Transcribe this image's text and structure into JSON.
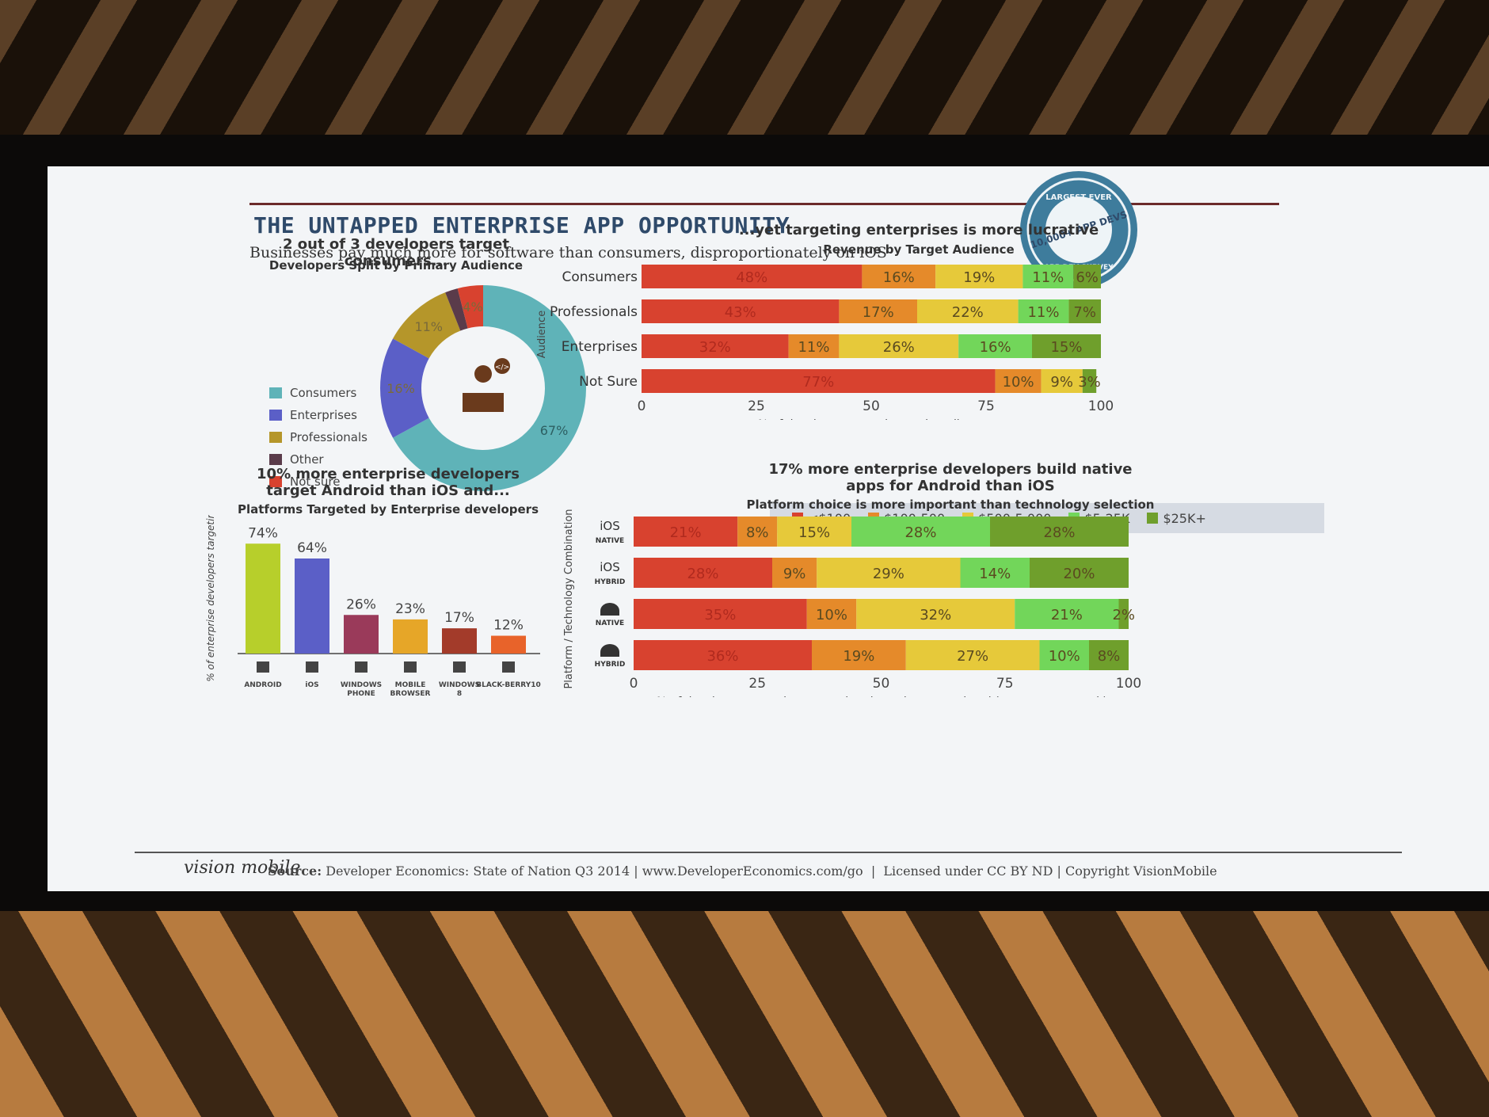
{
  "slide": {
    "title": "THE UNTAPPED ENTERPRISE APP OPPORTUNITY",
    "subtitle": "Businesses pay much more for software than consumers, disproportionately on iOS",
    "seal": {
      "top": "LARGEST EVER",
      "middle": "10,000+ APP DEVS",
      "bottom": "APP DEV SURVEY"
    },
    "footer": {
      "logo": "vision mobile",
      "source_label": "Source:",
      "source_text": "Developer Economics: State of Nation Q3 2014 | www.DeveloperEconomics.com/go",
      "license": "Licensed under CC BY ND | Copyright VisionMobile"
    }
  },
  "colors": {
    "consumers": "#5fb3b8",
    "enterprises": "#5b5fc7",
    "professionals": "#b5962a",
    "other": "#5a3b4a",
    "not_sure": "#d8422f",
    "lt100": "#d8422f",
    "100_500": "#e58a2a",
    "500_5000": "#e6c93a",
    "5_25k": "#72d65a",
    "25k_plus": "#6f9f2c"
  },
  "chart_data": [
    {
      "type": "pie",
      "title": "2 out of 3 developers target consumers...",
      "subtitle": "Developers Split by Primary Audience",
      "legend_position": "left",
      "slices": [
        {
          "name": "Consumers",
          "value": 67,
          "label": "67%"
        },
        {
          "name": "Enterprises",
          "value": 16,
          "label": "16%"
        },
        {
          "name": "Professionals",
          "value": 11,
          "label": "11%"
        },
        {
          "name": "Other",
          "value": 2,
          "label": ""
        },
        {
          "name": "Not sure",
          "value": 4,
          "label": "4%"
        }
      ]
    },
    {
      "type": "bar",
      "orientation": "horizontal",
      "stacked": true,
      "title": "...yet targeting enterprises is more lucrative",
      "subtitle": "Revenue by Target Audience",
      "ylabel": "Audience",
      "xlabel": "% of developers targeting each audience",
      "xlim": [
        0,
        100
      ],
      "xticks": [
        "0",
        "25",
        "50",
        "75",
        "100"
      ],
      "categories": [
        "Consumers",
        "Professionals",
        "Enterprises",
        "Not Sure"
      ],
      "series": [
        {
          "name": "<$100",
          "values": [
            48,
            43,
            32,
            77
          ]
        },
        {
          "name": "$100-500",
          "values": [
            16,
            17,
            11,
            10
          ]
        },
        {
          "name": "$500-5,000",
          "values": [
            19,
            22,
            26,
            9
          ]
        },
        {
          "name": "$5-25K",
          "values": [
            11,
            11,
            16,
            0
          ]
        },
        {
          "name": "$25K+",
          "values": [
            6,
            7,
            15,
            3
          ]
        }
      ]
    },
    {
      "type": "bar",
      "title": "10% more enterprise developers target Android than iOS and...",
      "subtitle": "Platforms Targeted by Enterprise developers",
      "ylabel": "% of enterprise developers targeting",
      "categories": [
        "ANDROID",
        "iOS",
        "WINDOWS PHONE",
        "MOBILE BROWSER",
        "WINDOWS 8",
        "BLACK-BERRY10"
      ],
      "values": [
        74,
        64,
        26,
        23,
        17,
        12
      ],
      "labels": [
        "74%",
        "64%",
        "26%",
        "23%",
        "17%",
        "12%"
      ],
      "bar_colors": [
        "#b7cf2b",
        "#5b5fc7",
        "#9a3a5a",
        "#e6a628",
        "#a33b2a",
        "#e8632a"
      ],
      "ylim": [
        0,
        80
      ]
    },
    {
      "type": "bar",
      "orientation": "horizontal",
      "stacked": true,
      "title": "17% more enterprise developers build native apps for Android than iOS",
      "subtitle": "Platform choice is more important than technology selection",
      "ylabel": "Platform / Technology Combination",
      "xlabel": "% of developers targeting enterprises in each revenue band (per app per month)",
      "xlim": [
        0,
        100
      ],
      "xticks": [
        "0",
        "25",
        "50",
        "75",
        "100"
      ],
      "categories": [
        {
          "platform": "iOS",
          "tech": "NATIVE"
        },
        {
          "platform": "iOS",
          "tech": "HYBRID"
        },
        {
          "platform": "",
          "tech": "NATIVE"
        },
        {
          "platform": "",
          "tech": "HYBRID"
        }
      ],
      "series": [
        {
          "name": "<$100",
          "values": [
            21,
            28,
            35,
            36
          ]
        },
        {
          "name": "$100-500",
          "values": [
            8,
            9,
            10,
            19
          ]
        },
        {
          "name": "$500-5,000",
          "values": [
            15,
            29,
            32,
            27
          ]
        },
        {
          "name": "$5-25K",
          "values": [
            28,
            14,
            21,
            10
          ]
        },
        {
          "name": "$25K+",
          "values": [
            28,
            20,
            2,
            8
          ]
        }
      ]
    }
  ]
}
